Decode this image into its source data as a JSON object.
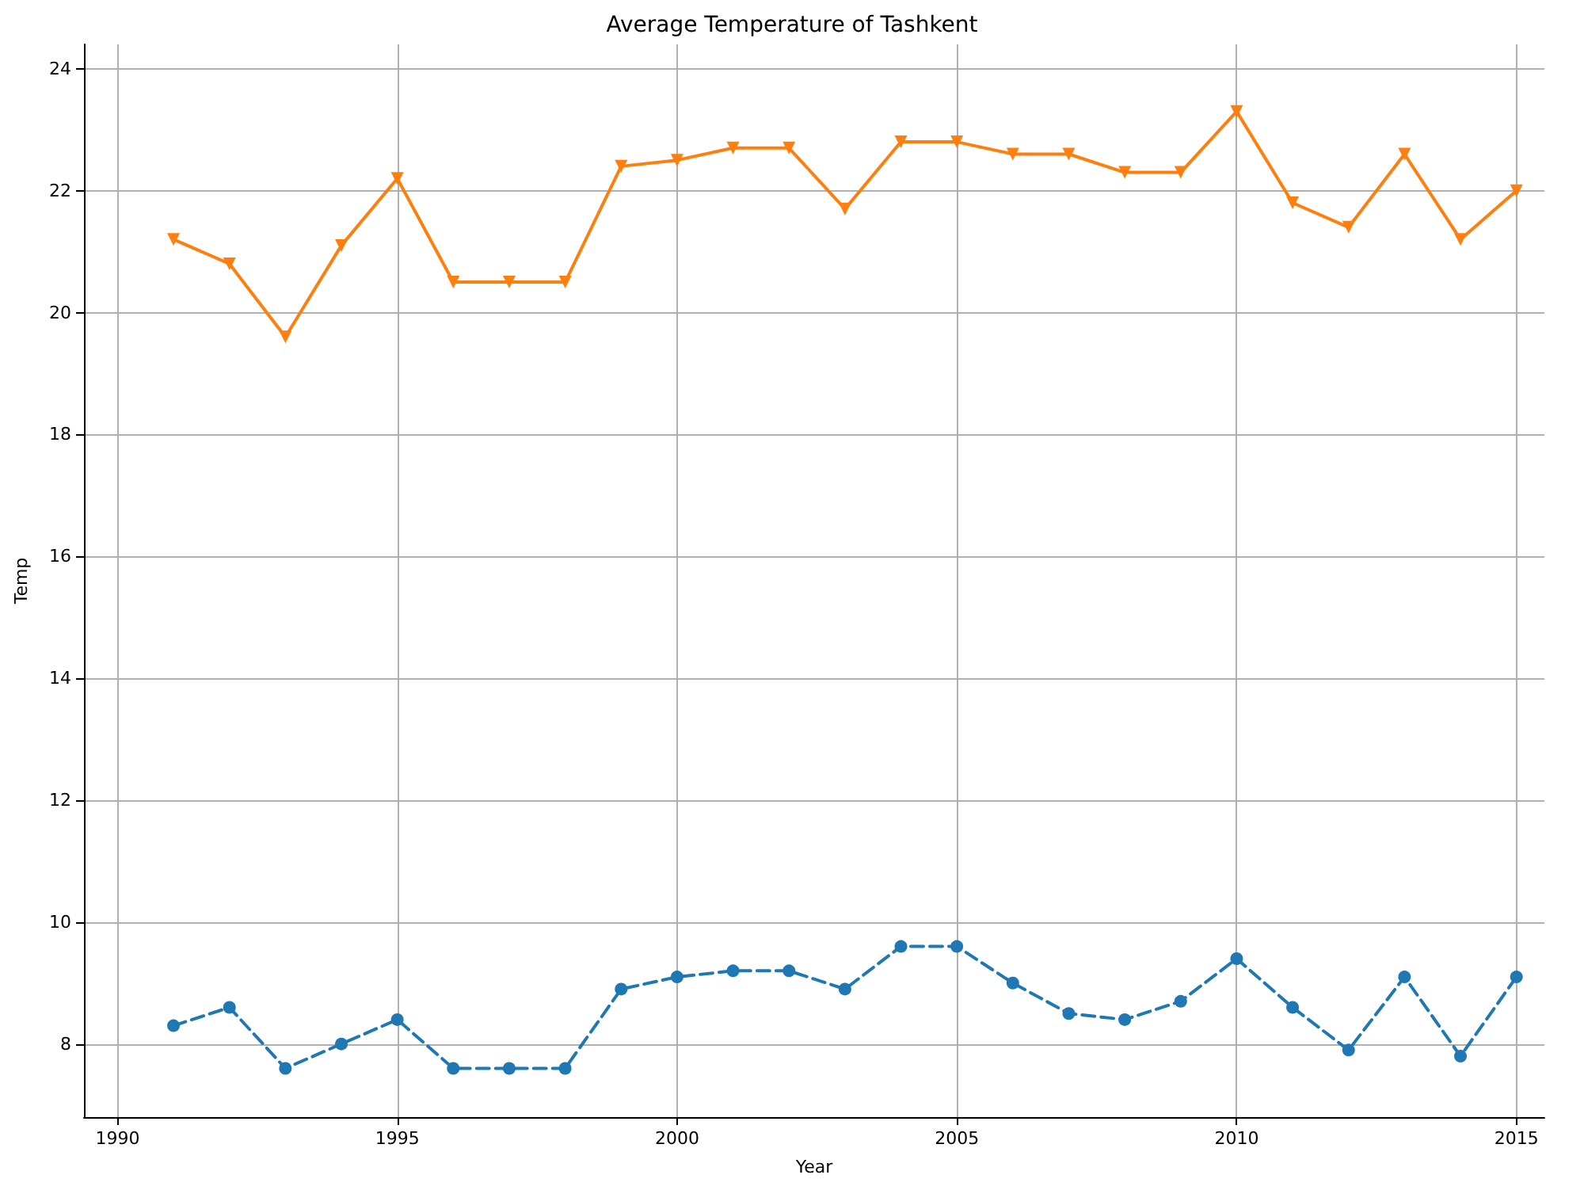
{
  "chart_data": {
    "type": "line",
    "title": "Average Temperature of Tashkent",
    "xlabel": "Year",
    "ylabel": "Temp",
    "x": [
      1991,
      1992,
      1993,
      1994,
      1995,
      1996,
      1997,
      1998,
      1999,
      2000,
      2001,
      2002,
      2003,
      2004,
      2005,
      2006,
      2007,
      2008,
      2009,
      2010,
      2011,
      2012,
      2013,
      2014,
      2015
    ],
    "series": [
      {
        "color": "#ff7f0e",
        "marker": "triangle",
        "line_style": "solid",
        "values": [
          21.2,
          20.8,
          19.6,
          21.1,
          22.2,
          20.5,
          20.5,
          20.5,
          22.4,
          22.5,
          22.7,
          22.7,
          21.7,
          22.8,
          22.8,
          22.6,
          22.6,
          22.3,
          22.3,
          23.3,
          21.8,
          21.4,
          22.6,
          21.2,
          22.0
        ]
      },
      {
        "color": "#1f77b4",
        "marker": "circle",
        "line_style": "dashed",
        "values": [
          8.3,
          8.6,
          7.6,
          8.0,
          8.4,
          7.6,
          7.6,
          7.6,
          8.9,
          9.1,
          9.2,
          9.2,
          8.9,
          9.6,
          9.6,
          9.0,
          8.5,
          8.4,
          8.7,
          9.4,
          8.6,
          7.9,
          9.1,
          7.8,
          9.1
        ]
      }
    ],
    "xlim": [
      1989.4,
      2015.5
    ],
    "xticks": [
      1990,
      1995,
      2000,
      2005,
      2010,
      2015
    ],
    "ylim": [
      6.8,
      24.4
    ],
    "yticks": [
      8,
      10,
      12,
      14,
      16,
      18,
      20,
      22,
      24
    ],
    "grid": true
  }
}
